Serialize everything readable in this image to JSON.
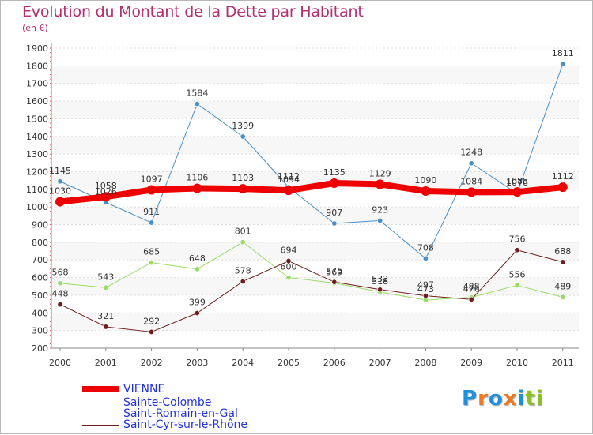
{
  "title": "Evolution du Montant de la Dette par Habitant",
  "unit": "(en €)",
  "logo": {
    "text": "Proxiti",
    "letters": [
      "P",
      "r",
      "o",
      "x",
      "i",
      "t",
      "i"
    ],
    "colors": [
      "#1e90e0",
      "#f07820",
      "#1e90e0",
      "#f07820",
      "#1e90e0",
      "#8cbe28",
      "#8cbe28"
    ]
  },
  "chart_data": {
    "type": "line",
    "title": "Evolution du Montant de la Dette par Habitant",
    "ylabel": "(en €)",
    "xlabel": "",
    "ylim": [
      200,
      1900
    ],
    "yticks": [
      200,
      300,
      400,
      500,
      600,
      700,
      800,
      900,
      1000,
      1100,
      1200,
      1300,
      1400,
      1500,
      1600,
      1700,
      1800,
      1900
    ],
    "categories": [
      "2000",
      "2001",
      "2002",
      "2003",
      "2004",
      "2005",
      "2006",
      "2007",
      "2008",
      "2009",
      "2010",
      "2011"
    ],
    "legend_position": "bottom-left",
    "series": [
      {
        "name": "VIENNE",
        "color": "#ee0000",
        "width": 8,
        "values": [
          1030,
          1058,
          1097,
          1106,
          1103,
          1094,
          1135,
          1129,
          1090,
          1084,
          1085,
          1112
        ],
        "labels": [
          "1030",
          "1058",
          "1097",
          "1106",
          "1103",
          "1094",
          "1135",
          "1129",
          "1090",
          "1084",
          "1085",
          "1112"
        ]
      },
      {
        "name": "Sainte-Colombe",
        "color": "#4a90c8",
        "width": 1,
        "values": [
          1145,
          1026,
          911,
          1584,
          1399,
          1112,
          907,
          923,
          708,
          1248,
          1076,
          1811
        ],
        "labels": [
          "1145",
          "1026",
          "911",
          "1584",
          "1399",
          "1112",
          "907",
          "923",
          "708",
          "1248",
          "1076",
          "1811"
        ]
      },
      {
        "name": "Saint-Romain-en-Gal",
        "color": "#99dd66",
        "width": 1,
        "values": [
          568,
          543,
          685,
          648,
          801,
          600,
          569,
          518,
          473,
          488,
          556,
          489
        ],
        "labels": [
          "568",
          "543",
          "685",
          "648",
          "801",
          "600",
          "569",
          "518",
          "473",
          "488",
          "556",
          "489"
        ]
      },
      {
        "name": "Saint-Cyr-sur-le-Rhône",
        "color": "#6e1e1e",
        "width": 1,
        "values": [
          448,
          321,
          292,
          399,
          578,
          694,
          575,
          532,
          497,
          476,
          756,
          688
        ],
        "labels": [
          "448",
          "321",
          "292",
          "399",
          "578",
          "694",
          "575",
          "532",
          "497",
          "476",
          "756",
          "688"
        ]
      }
    ]
  }
}
